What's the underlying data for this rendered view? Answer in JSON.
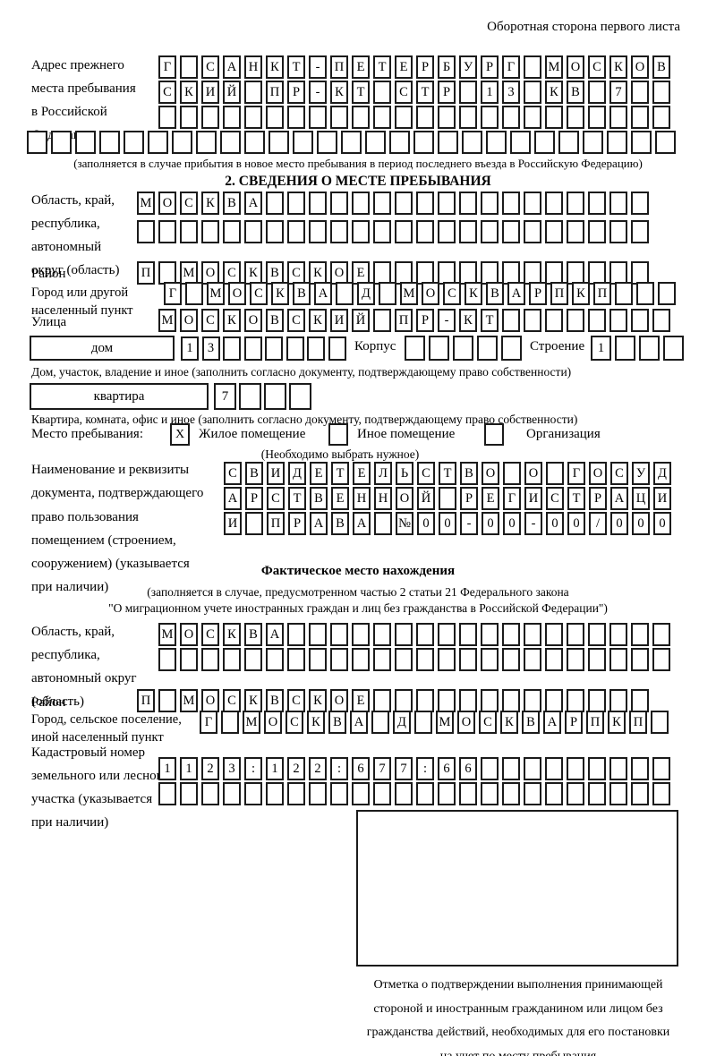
{
  "page": {
    "header_note": "Оборотная сторона первого листа"
  },
  "prev_address": {
    "label_lines": [
      "Адрес прежнего",
      "места пребывания",
      "в Российской",
      "Федерации"
    ],
    "rows": [
      "Г САНКТ-ПЕТЕРБУРГ МОСКОВ",
      "СКИЙ ПР-КТ СТР 13 КВ 7",
      ""
    ],
    "full_row": "",
    "caption": "(заполняется в случае прибытия в новое место пребывания в период последнего въезда в Российскую Федерацию)"
  },
  "section2": {
    "title": "2. СВЕДЕНИЯ О МЕСТЕ ПРЕБЫВАНИЯ",
    "region": {
      "label_lines": [
        "Область, край,",
        "республика,",
        "автономный",
        "округ (область)"
      ],
      "rows": [
        "МОСКВА",
        ""
      ]
    },
    "district": {
      "label": "Район",
      "row": "П МОСКВСКОЕ"
    },
    "city": {
      "label_lines": [
        "Город или другой",
        "населенный пункт"
      ],
      "row": "Г МОСКВА Д МОСКВАРПКП"
    },
    "street": {
      "label": "Улица",
      "row": "МОСКОВСКИЙ ПР-КТ"
    },
    "house_row": {
      "house_label": "дом",
      "house_boxes": "13",
      "korpus_label": "Корпус",
      "korpus_boxes": "",
      "stroenie_label": "Строение",
      "stroenie_boxes": "1"
    },
    "house_caption": "Дом, участок, владение и иное (заполнить согласно документу, подтверждающему право собственности)",
    "apartment_row": {
      "label": "квартира",
      "boxes": "7"
    },
    "apartment_caption": "Квартира, комната, офис и иное (заполнить согласно документу, подтверждающему право собственности)",
    "stay_type": {
      "label": "Место пребывания:",
      "options": [
        {
          "checked": "X",
          "label": "Жилое помещение"
        },
        {
          "checked": "",
          "label": "Иное помещение"
        },
        {
          "checked": "",
          "label": "Организация"
        }
      ],
      "caption": "(Необходимо выбрать нужное)"
    },
    "document": {
      "label_lines": [
        "Наименование и реквизиты",
        "документа, подтверждающего",
        "право пользования",
        "помещением (строением,",
        "сооружением) (указывается",
        "при наличии)"
      ],
      "rows": [
        "СВИДЕТЕЛЬСТВО О ГОСУД",
        "АРСТВЕННОЙ РЕГИСТРАЦИ",
        "И ПРАВА №00-00-00/000"
      ]
    }
  },
  "actual_location": {
    "title": "Фактическое место нахождения",
    "caption_lines": [
      "(заполняется в случае, предусмотренном частью 2 статьи 21 Федерального закона",
      "\"О миграционном учете иностранных граждан и лиц без гражданства в Российской Федерации\")"
    ],
    "region": {
      "label_lines": [
        "Область, край,",
        "республика,",
        "автономный округ",
        "(область)"
      ],
      "rows": [
        "МОСКВА",
        ""
      ]
    },
    "district": {
      "label": "Район",
      "row": "П МОСКВСКОЕ"
    },
    "city": {
      "label_lines": [
        "Город, сельское поселение,",
        "иной населенный пункт"
      ],
      "row": "Г МОСКВА Д МОСКВАРПКП"
    },
    "cadastral": {
      "label_lines": [
        "Кадастровый номер",
        "земельного или лесного",
        "участка (указывается",
        "при наличии)"
      ],
      "rows": [
        "1123:122:677:66",
        ""
      ]
    }
  },
  "stamp": {
    "caption_lines": [
      "Отметка о подтверждении выполнения принимающей",
      "стороной и иностранным гражданином или лицом без",
      "гражданства действий, необходимых для его постановки",
      "на учет по месту пребывания"
    ]
  }
}
